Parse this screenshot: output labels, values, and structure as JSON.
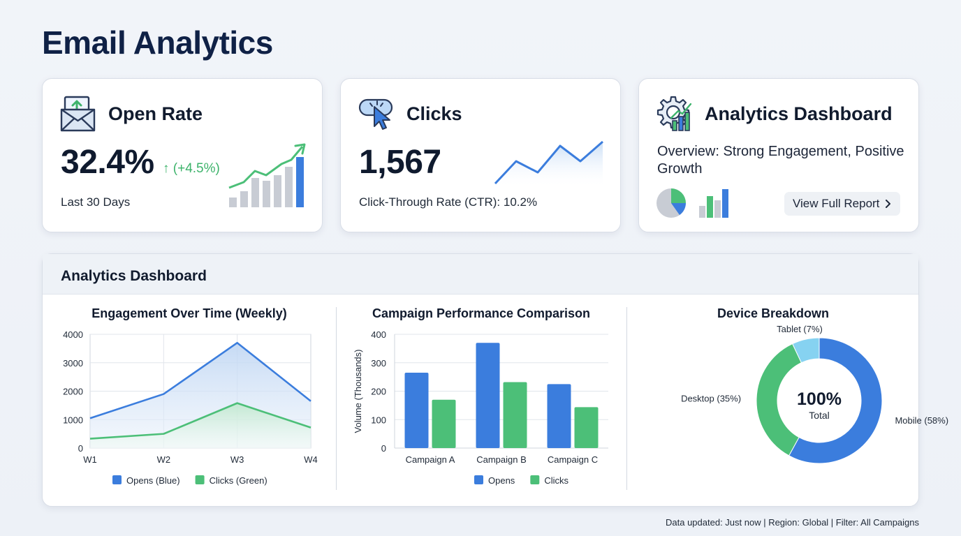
{
  "page": {
    "title": "Email Analytics"
  },
  "cards": {
    "open_rate": {
      "title": "Open Rate",
      "value": "32.4%",
      "change": "↑ (+4.5%)",
      "period": "Last 30 Days",
      "icon": "envelope-up-icon"
    },
    "clicks": {
      "title": "Clicks",
      "value": "1,567",
      "ctr": "Click-Through Rate (CTR): 10.2%",
      "icon": "cursor-click-icon"
    },
    "analytics": {
      "title": "Analytics Dashboard",
      "overview": "Overview: Strong Engagement, Positive Growth",
      "button_label": "View Full Report",
      "icon": "gear-chart-icon"
    }
  },
  "panel": {
    "title": "Analytics Dashboard"
  },
  "colors": {
    "blue": "#3b7ddd",
    "green": "#4cbf78",
    "light_blue": "#86d2f1",
    "navy": "#0f2146"
  },
  "chart_data": [
    {
      "type": "line",
      "title": "Engagement Over Time (Weekly)",
      "categories": [
        "W1",
        "W2",
        "W3",
        "W4"
      ],
      "series": [
        {
          "name": "Opens (Blue)",
          "values": [
            1050,
            1900,
            3700,
            1650
          ]
        },
        {
          "name": "Clicks (Green)",
          "values": [
            330,
            500,
            1580,
            720
          ]
        }
      ],
      "yticks": [
        "0",
        "1000",
        "2000",
        "3000",
        "4000"
      ],
      "ylim": [
        0,
        4000
      ],
      "grid": true,
      "legend": "bottom"
    },
    {
      "type": "bar",
      "title": "Campaign Performance Comparison",
      "ylabel": "Volume (Thousands)",
      "categories": [
        "Campaign A",
        "Campaign B",
        "Campaign C"
      ],
      "series": [
        {
          "name": "Opens",
          "values": [
            265,
            370,
            225
          ]
        },
        {
          "name": "Clicks",
          "values": [
            170,
            232,
            144
          ]
        }
      ],
      "yticks": [
        "0",
        "100",
        "200",
        "300",
        "400"
      ],
      "ylim": [
        0,
        400
      ],
      "grid": true,
      "legend": "bottom"
    },
    {
      "type": "pie",
      "title": "Device Breakdown",
      "center_value": "100%",
      "center_label": "Total",
      "slices": [
        {
          "name": "Mobile",
          "label": "Mobile (58%)",
          "value": 58
        },
        {
          "name": "Desktop",
          "label": "Desktop (35%)",
          "value": 35
        },
        {
          "name": "Tablet",
          "label": "Tablet (7%)",
          "value": 7
        }
      ]
    }
  ],
  "footer": {
    "status": "Data updated: Just now | Region: Global | Filter: All Campaigns"
  }
}
